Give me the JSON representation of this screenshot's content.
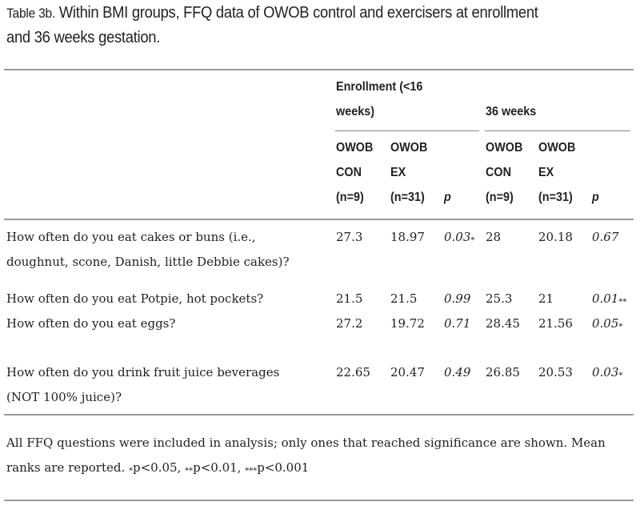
{
  "caption": {
    "label": "Table 3b.",
    "text": " Within BMI groups, FFQ data of OWOB control and exercisers at enrollment",
    "text2": "and 36 weeks gestation."
  },
  "header": {
    "group1": {
      "line1": "Enrollment (<16",
      "line2": "weeks)"
    },
    "group2": {
      "line1": "36 weeks"
    },
    "cols": [
      {
        "l1": "OWOB",
        "l2": "CON",
        "l3": "(n=9)"
      },
      {
        "l1": "OWOB",
        "l2": "EX",
        "l3": "(n=31)"
      },
      {
        "l3": "p"
      },
      {
        "l1": "OWOB",
        "l2": "CON",
        "l3": "(n=9)"
      },
      {
        "l1": "OWOB",
        "l2": "EX",
        "l3": "(n=31)"
      },
      {
        "l3": "p"
      }
    ]
  },
  "rows": [
    {
      "q1": "How often do you eat cakes or buns (i.e.,",
      "q2": "doughnut, scone, Danish, little Debbie cakes)?",
      "v": [
        "27.3",
        "18.97",
        "0.03",
        "28",
        "20.18",
        "0.67"
      ],
      "s": [
        "",
        "",
        "*",
        "",
        "",
        ""
      ]
    },
    {
      "q1": "How often do you eat Potpie, hot pockets?",
      "v": [
        "21.5",
        "21.5",
        "0.99",
        "25.3",
        "21",
        "0.01"
      ],
      "s": [
        "",
        "",
        "",
        "",
        "",
        "**"
      ]
    },
    {
      "q1": "How often do you eat eggs?",
      "v": [
        "27.2",
        "19.72",
        "0.71",
        "28.45",
        "21.56",
        "0.05"
      ],
      "s": [
        "",
        "",
        "",
        "",
        "",
        "*"
      ]
    },
    {
      "q1": "How often do you drink fruit juice beverages",
      "q2": "(NOT 100% juice)?",
      "v": [
        "22.65",
        "20.47",
        "0.49",
        "26.85",
        "20.53",
        "0.03"
      ],
      "s": [
        "",
        "",
        "",
        "",
        "",
        "*"
      ]
    }
  ],
  "footnote": {
    "line1": "All FFQ questions were included in analysis; only ones that reached significance are shown. Mean",
    "line2a": "ranks are reported. ",
    "s1": "*",
    "t1": "p<0.05, ",
    "s2": "**",
    "t2": "p<0.01, ",
    "s3": "***",
    "t3": "p<0.001"
  }
}
